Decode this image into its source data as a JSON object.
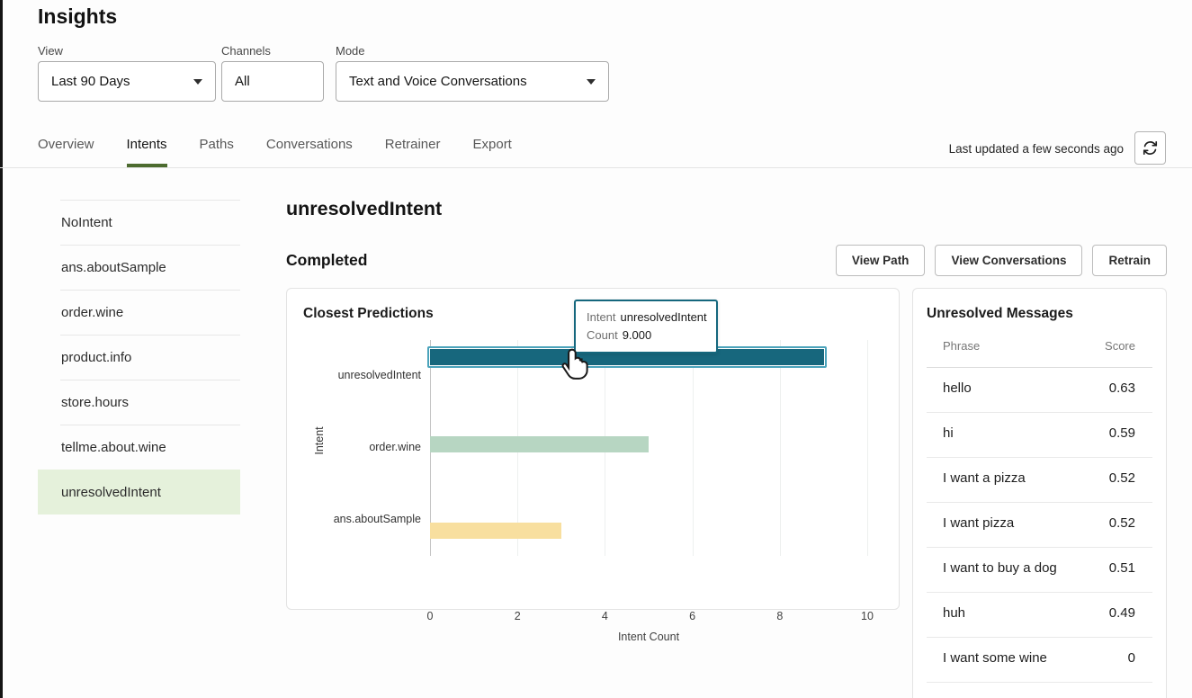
{
  "page": {
    "title": "Insights"
  },
  "filters": {
    "view": {
      "label": "View",
      "value": "Last 90 Days"
    },
    "channels": {
      "label": "Channels",
      "value": "All"
    },
    "mode": {
      "label": "Mode",
      "value": "Text and Voice Conversations"
    }
  },
  "tabs": {
    "items": [
      "Overview",
      "Intents",
      "Paths",
      "Conversations",
      "Retrainer",
      "Export"
    ],
    "active": "Intents",
    "last_updated": "Last updated a few seconds ago",
    "refresh_icon": "refresh-icon"
  },
  "sidebar": {
    "items": [
      "NoIntent",
      "ans.aboutSample",
      "order.wine",
      "product.info",
      "store.hours",
      "tellme.about.wine",
      "unresolvedIntent"
    ],
    "selected": "unresolvedIntent"
  },
  "detail": {
    "title": "unresolvedIntent",
    "status": "Completed",
    "buttons": [
      "View Path",
      "View Conversations",
      "Retrain"
    ]
  },
  "chart_data": {
    "type": "bar",
    "orientation": "horizontal",
    "title": "Closest Predictions",
    "categories": [
      "unresolvedIntent",
      "order.wine",
      "ans.aboutSample"
    ],
    "values": [
      9,
      5,
      3
    ],
    "bar_colors": [
      "#17677d",
      "#b7d6c2",
      "#f8df9f"
    ],
    "selected_category": "unresolvedIntent",
    "selection_ring_color": "#4ba3bb",
    "xlabel": "Intent Count",
    "ylabel": "Intent",
    "xlim": [
      0,
      10
    ],
    "xticks": [
      0,
      2,
      4,
      6,
      8,
      10
    ],
    "grid": "vertical",
    "tooltip": {
      "intent_label": "Intent",
      "intent_value": "unresolvedIntent",
      "count_label": "Count",
      "count_value": "9.000"
    }
  },
  "unresolved_messages": {
    "title": "Unresolved Messages",
    "columns": [
      "Phrase",
      "Score"
    ],
    "rows": [
      {
        "phrase": "hello",
        "score": "0.63"
      },
      {
        "phrase": "hi",
        "score": "0.59"
      },
      {
        "phrase": "I want a pizza",
        "score": "0.52"
      },
      {
        "phrase": "I want pizza",
        "score": "0.52"
      },
      {
        "phrase": "I want to buy a dog",
        "score": "0.51"
      },
      {
        "phrase": "huh",
        "score": "0.49"
      },
      {
        "phrase": "I want some wine",
        "score": "0"
      }
    ]
  },
  "colors": {
    "accent_green": "#4c6b2f",
    "selected_item_bg": "#e5f1db",
    "teal": "#17677d",
    "card_border": "#e3e3e3"
  }
}
